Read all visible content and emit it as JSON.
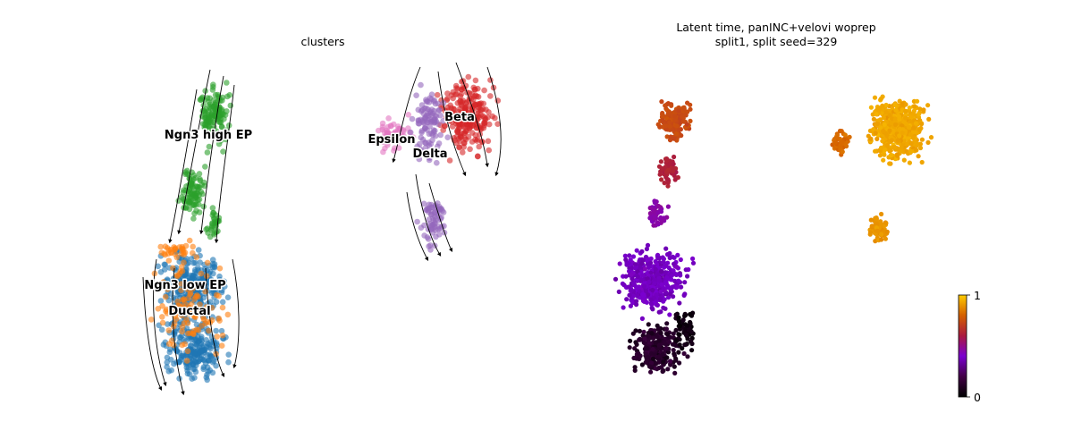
{
  "chart_data": [
    {
      "type": "scatter",
      "title": "clusters",
      "subtype": "umap embedding with velocity streamlines",
      "axes_visible": false,
      "legend": "on data",
      "cluster_labels": [
        {
          "name": "Ngn3 high EP",
          "color": "#2ca02c"
        },
        {
          "name": "Epsilon",
          "color": "#e377c2"
        },
        {
          "name": "Beta",
          "color": "#d62728"
        },
        {
          "name": "Delta",
          "color": "#9467bd"
        },
        {
          "name": "Ngn3 low EP",
          "color": "#ff7f0e"
        },
        {
          "name": "Ductal",
          "color": "#1f77b4"
        }
      ]
    },
    {
      "type": "scatter",
      "title_lines": [
        "Latent time, panINC+velovi woprep",
        "split1, split seed=329"
      ],
      "subtype": "umap embedding colored by latent time",
      "axes_visible": false,
      "colormap": "gnuplot",
      "colorbar": {
        "min": 0,
        "max": 1,
        "ticks": [
          "0",
          "1"
        ]
      }
    }
  ]
}
